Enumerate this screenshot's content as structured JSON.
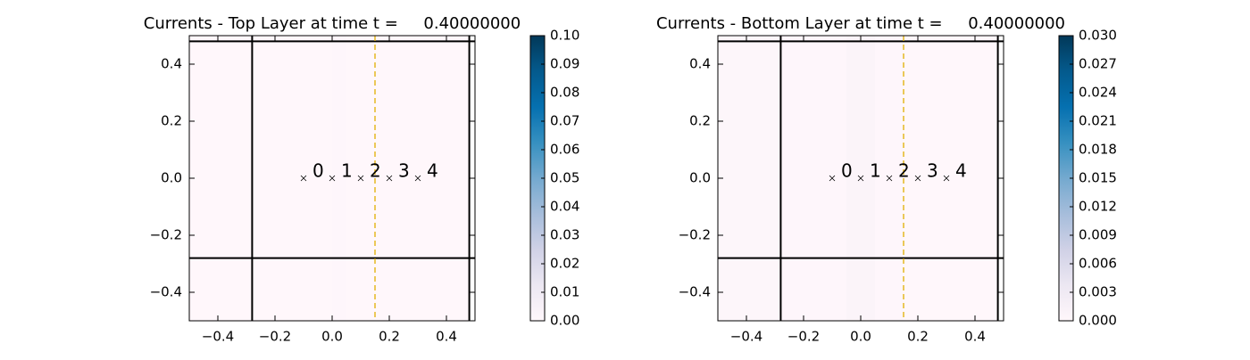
{
  "chart_data": [
    {
      "type": "heatmap",
      "title": "Currents - Top Layer at time t =     0.40000000",
      "xlim": [
        -0.5,
        0.5
      ],
      "ylim": [
        -0.5,
        0.5
      ],
      "xticks": [
        {
          "value": -0.4,
          "label": "−0.4"
        },
        {
          "value": -0.2,
          "label": "−0.2"
        },
        {
          "value": 0,
          "label": "0.0"
        },
        0.2,
        0.4
      ],
      "yticks": [
        {
          "value": -0.4,
          "label": "−0.4"
        },
        {
          "value": -0.2,
          "label": "−0.2"
        },
        {
          "value": 0,
          "label": "0.0"
        },
        0.2,
        0.4
      ],
      "strip_edges": [
        -0.5,
        0.0,
        0.05,
        0.48
      ],
      "strip_values": [
        0.0002,
        0.0004,
        0.0002
      ],
      "clim": [
        0,
        0.1
      ],
      "cticks": [
        {
          "value": 0,
          "label": "0.00"
        },
        {
          "value": 0.01,
          "label": "0.01"
        },
        {
          "value": 0.02,
          "label": "0.02"
        },
        {
          "value": 0.03,
          "label": "0.03"
        },
        {
          "value": 0.04,
          "label": "0.04"
        },
        {
          "value": 0.05,
          "label": "0.05"
        },
        {
          "value": 0.06,
          "label": "0.06"
        },
        {
          "value": 0.07,
          "label": "0.07"
        },
        {
          "value": 0.08,
          "label": "0.08"
        },
        {
          "value": 0.09,
          "label": "0.09"
        },
        {
          "value": 0.1,
          "label": "0.10"
        }
      ],
      "vlines": [
        -0.28,
        0.48
      ],
      "hlines": [
        -0.28,
        0.48
      ],
      "dashed_x": 0.15,
      "dashed_color": "#e0b000",
      "points": {
        "x": [
          -0.1,
          0,
          0.1,
          0.2,
          0.3
        ],
        "y": [
          0,
          0,
          0,
          0,
          0
        ],
        "labels": [
          "0",
          "1",
          "2",
          "3",
          "4"
        ]
      }
    },
    {
      "type": "heatmap",
      "title": "Currents - Bottom Layer at time t =     0.40000000",
      "xlim": [
        -0.5,
        0.5
      ],
      "ylim": [
        -0.5,
        0.5
      ],
      "xticks": [
        {
          "value": -0.4,
          "label": "−0.4"
        },
        {
          "value": -0.2,
          "label": "−0.2"
        },
        {
          "value": 0,
          "label": "0.0"
        },
        0.2,
        0.4
      ],
      "yticks": [
        {
          "value": -0.4,
          "label": "−0.4"
        },
        {
          "value": -0.2,
          "label": "−0.2"
        },
        {
          "value": 0,
          "label": "0.0"
        },
        0.2,
        0.4
      ],
      "strip_edges": [
        -0.5,
        -0.28,
        -0.05,
        0.05,
        0.15,
        0.48
      ],
      "strip_values": [
        0.0003,
        0.0002,
        0.0008,
        0.0002,
        0
      ],
      "clim": [
        0,
        0.03
      ],
      "cticks": [
        {
          "value": 0,
          "label": "0.000"
        },
        0.003,
        0.006,
        0.009,
        0.012,
        0.015,
        0.018,
        0.021,
        0.024,
        0.027,
        {
          "value": 0.03,
          "label": "0.030"
        }
      ],
      "vlines": [
        -0.28,
        0.48
      ],
      "hlines": [
        -0.28,
        0.48
      ],
      "dashed_x": 0.15,
      "dashed_color": "#e0b000",
      "points": {
        "x": [
          -0.1,
          0,
          0.1,
          0.2,
          0.3
        ],
        "y": [
          0,
          0,
          0,
          0,
          0
        ],
        "labels": [
          "0",
          "1",
          "2",
          "3",
          "4"
        ]
      }
    }
  ]
}
